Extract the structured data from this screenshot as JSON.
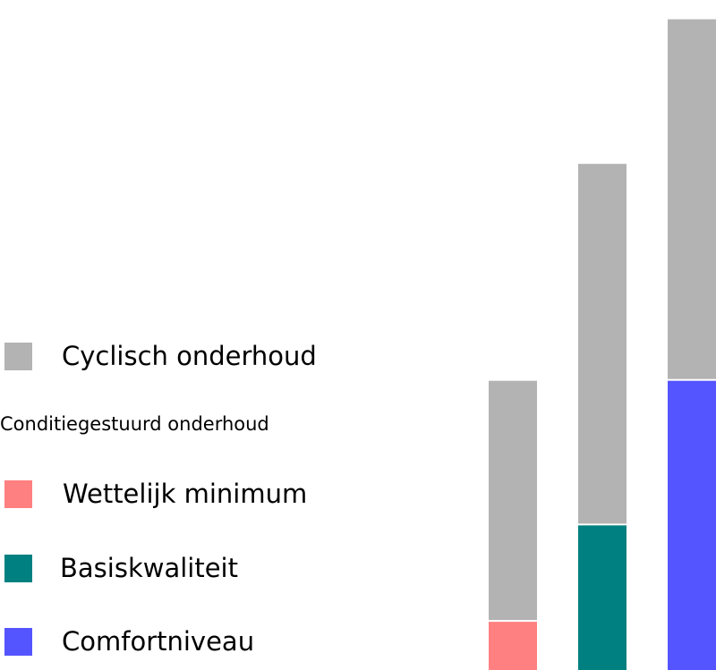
{
  "chart_data": {
    "type": "bar",
    "stacked": true,
    "categories": [
      "",
      "",
      ""
    ],
    "series": [
      {
        "name": "Wettelijk minimum",
        "color": "#ff8080",
        "values": [
          1,
          0,
          0
        ]
      },
      {
        "name": "Basiskwaliteit",
        "color": "#008080",
        "values": [
          0,
          3,
          0
        ]
      },
      {
        "name": "Comfortniveau",
        "color": "#5555ff",
        "values": [
          0,
          0,
          6
        ]
      },
      {
        "name": "Cyclisch onderhoud",
        "color": "#b3b3b3",
        "values": [
          5,
          7.5,
          7.5
        ]
      }
    ],
    "ylim": [
      0,
      13.9
    ],
    "grid": false,
    "axes_visible": false,
    "legend_position": "left",
    "legend": {
      "entries": [
        {
          "label": "Cyclisch onderhoud",
          "color": "#b3b3b3"
        },
        {
          "heading": "Conditiegestuurd onderhoud"
        },
        {
          "label": "Wettelijk minimum",
          "color": "#ff8080"
        },
        {
          "label": "Basiskwaliteit",
          "color": "#008080"
        },
        {
          "label": "Comfortniveau",
          "color": "#5555ff"
        }
      ]
    }
  }
}
